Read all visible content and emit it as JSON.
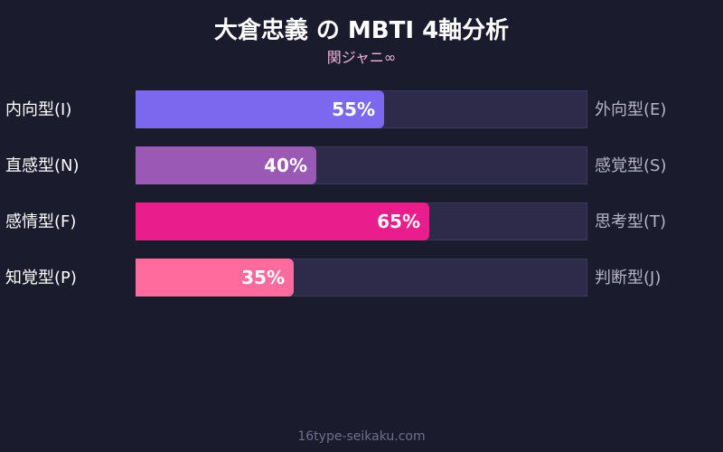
{
  "chart_data": {
    "type": "bar",
    "orientation": "horizontal",
    "title": "大倉忠義 の MBTI 4軸分析",
    "subtitle": "関ジャニ∞",
    "xlim": [
      0,
      100
    ],
    "rows": [
      {
        "left_label": "内向型(I)",
        "right_label": "外向型(E)",
        "value": 55,
        "value_label": "55%",
        "color": "#7b68ee"
      },
      {
        "left_label": "直感型(N)",
        "right_label": "感覚型(S)",
        "value": 40,
        "value_label": "40%",
        "color": "#9b59b6"
      },
      {
        "left_label": "感情型(F)",
        "right_label": "思考型(T)",
        "value": 65,
        "value_label": "65%",
        "color": "#e91e8c"
      },
      {
        "left_label": "知覚型(P)",
        "right_label": "判断型(J)",
        "value": 35,
        "value_label": "35%",
        "color": "#ff6b9d"
      }
    ]
  },
  "footer": "16type-seikaku.com"
}
